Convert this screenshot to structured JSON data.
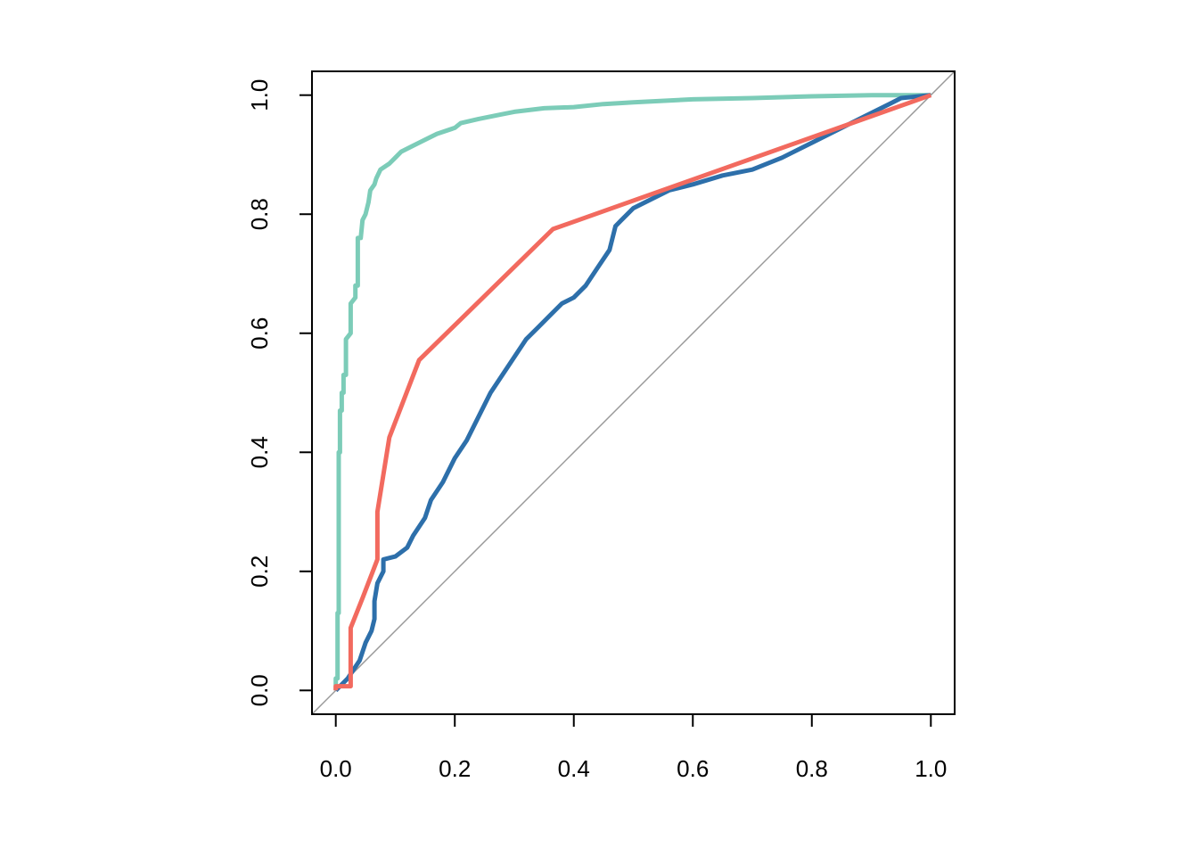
{
  "chart_data": {
    "type": "line",
    "title": "",
    "xlabel": "",
    "ylabel": "",
    "xlim": [
      -0.04,
      1.04
    ],
    "ylim": [
      -0.04,
      1.04
    ],
    "x_ticks": [
      "0.0",
      "0.2",
      "0.4",
      "0.6",
      "0.8",
      "1.0"
    ],
    "y_ticks": [
      "0.0",
      "0.2",
      "0.4",
      "0.6",
      "0.8",
      "1.0"
    ],
    "grid": false,
    "legend": "none",
    "reference_line": {
      "points": [
        [
          -0.04,
          -0.04
        ],
        [
          1.04,
          1.04
        ]
      ],
      "color": "#999999"
    },
    "series": [
      {
        "color": "#7cccb8",
        "points": [
          [
            0,
            0
          ],
          [
            0,
            0.02
          ],
          [
            0.003,
            0.02
          ],
          [
            0.003,
            0.13
          ],
          [
            0.005,
            0.13
          ],
          [
            0.005,
            0.4
          ],
          [
            0.007,
            0.4
          ],
          [
            0.007,
            0.47
          ],
          [
            0.01,
            0.47
          ],
          [
            0.01,
            0.5
          ],
          [
            0.013,
            0.5
          ],
          [
            0.013,
            0.53
          ],
          [
            0.017,
            0.53
          ],
          [
            0.017,
            0.59
          ],
          [
            0.025,
            0.6
          ],
          [
            0.025,
            0.65
          ],
          [
            0.033,
            0.66
          ],
          [
            0.033,
            0.68
          ],
          [
            0.037,
            0.68
          ],
          [
            0.037,
            0.76
          ],
          [
            0.042,
            0.76
          ],
          [
            0.045,
            0.79
          ],
          [
            0.05,
            0.8
          ],
          [
            0.055,
            0.82
          ],
          [
            0.058,
            0.84
          ],
          [
            0.065,
            0.85
          ],
          [
            0.068,
            0.86
          ],
          [
            0.075,
            0.875
          ],
          [
            0.09,
            0.885
          ],
          [
            0.1,
            0.895
          ],
          [
            0.11,
            0.905
          ],
          [
            0.12,
            0.91
          ],
          [
            0.13,
            0.915
          ],
          [
            0.15,
            0.925
          ],
          [
            0.17,
            0.935
          ],
          [
            0.2,
            0.945
          ],
          [
            0.21,
            0.953
          ],
          [
            0.24,
            0.96
          ],
          [
            0.28,
            0.968
          ],
          [
            0.3,
            0.972
          ],
          [
            0.35,
            0.978
          ],
          [
            0.4,
            0.98
          ],
          [
            0.45,
            0.985
          ],
          [
            0.5,
            0.988
          ],
          [
            0.6,
            0.993
          ],
          [
            0.7,
            0.995
          ],
          [
            0.8,
            0.998
          ],
          [
            0.9,
            1.0
          ],
          [
            1.0,
            1.0
          ]
        ]
      },
      {
        "color": "#2d6faa",
        "points": [
          [
            0,
            0
          ],
          [
            0.01,
            0.01
          ],
          [
            0.02,
            0.02
          ],
          [
            0.03,
            0.035
          ],
          [
            0.04,
            0.05
          ],
          [
            0.05,
            0.08
          ],
          [
            0.06,
            0.1
          ],
          [
            0.065,
            0.12
          ],
          [
            0.065,
            0.15
          ],
          [
            0.07,
            0.18
          ],
          [
            0.08,
            0.2
          ],
          [
            0.08,
            0.22
          ],
          [
            0.1,
            0.225
          ],
          [
            0.12,
            0.24
          ],
          [
            0.13,
            0.26
          ],
          [
            0.15,
            0.29
          ],
          [
            0.16,
            0.32
          ],
          [
            0.18,
            0.35
          ],
          [
            0.2,
            0.39
          ],
          [
            0.22,
            0.42
          ],
          [
            0.24,
            0.46
          ],
          [
            0.26,
            0.5
          ],
          [
            0.28,
            0.53
          ],
          [
            0.3,
            0.56
          ],
          [
            0.32,
            0.59
          ],
          [
            0.34,
            0.61
          ],
          [
            0.36,
            0.63
          ],
          [
            0.38,
            0.65
          ],
          [
            0.4,
            0.66
          ],
          [
            0.42,
            0.68
          ],
          [
            0.44,
            0.71
          ],
          [
            0.46,
            0.74
          ],
          [
            0.47,
            0.78
          ],
          [
            0.48,
            0.79
          ],
          [
            0.5,
            0.81
          ],
          [
            0.53,
            0.825
          ],
          [
            0.56,
            0.84
          ],
          [
            0.6,
            0.85
          ],
          [
            0.65,
            0.865
          ],
          [
            0.7,
            0.875
          ],
          [
            0.75,
            0.895
          ],
          [
            0.8,
            0.92
          ],
          [
            0.85,
            0.945
          ],
          [
            0.9,
            0.97
          ],
          [
            0.93,
            0.985
          ],
          [
            0.95,
            0.995
          ],
          [
            1.0,
            1.0
          ]
        ]
      },
      {
        "color": "#f26a5f",
        "points": [
          [
            0,
            0
          ],
          [
            0,
            0.007
          ],
          [
            0.025,
            0.007
          ],
          [
            0.025,
            0.105
          ],
          [
            0.045,
            0.155
          ],
          [
            0.07,
            0.22
          ],
          [
            0.07,
            0.3
          ],
          [
            0.09,
            0.425
          ],
          [
            0.14,
            0.555
          ],
          [
            0.365,
            0.775
          ],
          [
            1.0,
            1.0
          ]
        ]
      }
    ]
  }
}
